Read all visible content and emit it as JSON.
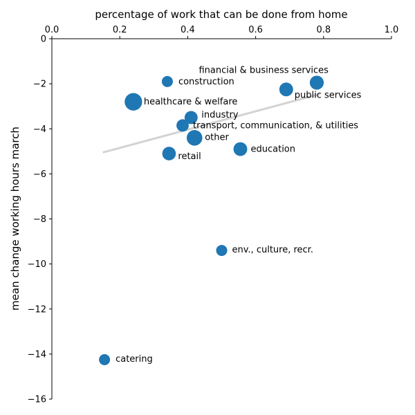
{
  "chart_data": {
    "type": "scatter",
    "title": "",
    "xlabel": "percentage of work that can be done from home",
    "ylabel": "mean change working hours march",
    "xlim": [
      0.0,
      1.0
    ],
    "ylim": [
      -16,
      0
    ],
    "x_ticks": [
      "0.0",
      "0.2",
      "0.4",
      "0.6",
      "0.8",
      "1.0"
    ],
    "y_ticks": [
      "0",
      "−2",
      "−4",
      "−6",
      "−8",
      "−10",
      "−12",
      "−14",
      "−16"
    ],
    "x_axis_position": "top",
    "grid": false,
    "legend": "none",
    "point_color": "#1f77b4",
    "trend_color": "#d3d3d3",
    "trend_line": {
      "x": [
        0.15,
        0.79
      ],
      "y": [
        -5.05,
        -2.45
      ]
    },
    "points": [
      {
        "label": "construction",
        "x": 0.34,
        "y": -1.9,
        "size": 1.0
      },
      {
        "label": "financial & business services",
        "x": 0.78,
        "y": -1.95,
        "size": 1.6
      },
      {
        "label": "public services",
        "x": 0.69,
        "y": -2.25,
        "size": 1.55
      },
      {
        "label": "healthcare & welfare",
        "x": 0.24,
        "y": -2.8,
        "size": 2.5
      },
      {
        "label": "industry",
        "x": 0.41,
        "y": -3.5,
        "size": 1.4
      },
      {
        "label": "transport, communication, & utilities",
        "x": 0.385,
        "y": -3.85,
        "size": 1.25
      },
      {
        "label": "other",
        "x": 0.42,
        "y": -4.4,
        "size": 2.0
      },
      {
        "label": "education",
        "x": 0.555,
        "y": -4.9,
        "size": 1.55
      },
      {
        "label": "retail",
        "x": 0.345,
        "y": -5.1,
        "size": 1.5
      },
      {
        "label": "env., culture, recr.",
        "x": 0.5,
        "y": -9.4,
        "size": 1.0
      },
      {
        "label": "catering",
        "x": 0.155,
        "y": -14.25,
        "size": 1.0
      }
    ]
  }
}
